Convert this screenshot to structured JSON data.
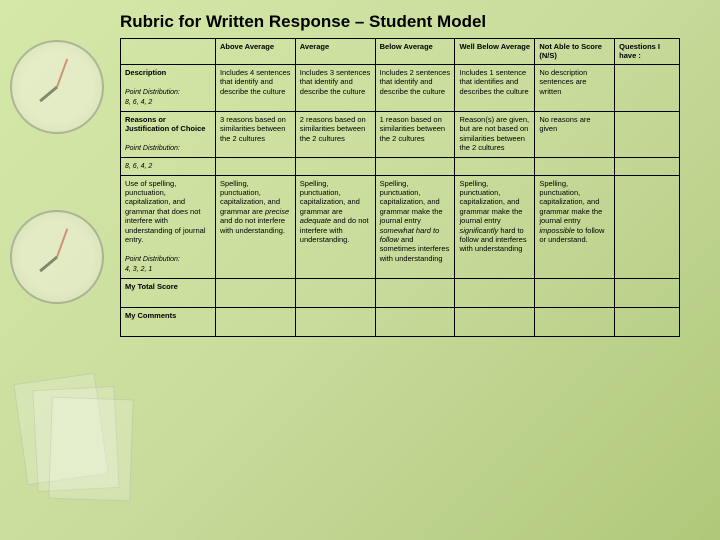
{
  "title": "Rubric for Written Response – Student Model",
  "table": {
    "type": "table",
    "background_color": "#d4e8a8",
    "border_color": "#000000",
    "text_color": "#000000",
    "font_size_pt": 7.5,
    "headers": [
      "",
      "Above Average",
      "Average",
      "Below Average",
      "Well Below Average",
      "Not Able to Score (N/S)",
      "Questions I have :"
    ],
    "rows": [
      {
        "criteria_label": "Description",
        "point_label": "Point Distribution:",
        "points": "8, 6, 4, 2",
        "cells": [
          "Includes 4 sentences that identify and describe the culture",
          "Includes 3 sentences that identify and describe the culture",
          "Includes 2 sentences that identify and describe the culture",
          "Includes 1 sentence that identifies and describes the culture",
          "No description sentences are written",
          ""
        ]
      },
      {
        "criteria_label": "Reasons or Justification of Choice",
        "point_label": "Point Distribution:",
        "points": "8, 6, 4, 2",
        "points_below": true,
        "cells": [
          "3 reasons based on similarities between the 2 cultures",
          "2 reasons based on similarities between the 2 cultures",
          "1 reason based on similarities between the 2 cultures",
          "Reason(s) are given, but are not based on similarities between the 2 cultures",
          "No reasons are given",
          ""
        ]
      },
      {
        "criteria_label": "Use of spelling, punctuation, capitalization, and grammar that does not interfere with understanding of journal entry.",
        "point_label": "Point Distribution:",
        "points": "4, 3, 2, 1",
        "cells": [
          "Spelling, punctuation, capitalization, and grammar are precise and do not interfere with understanding.",
          "Spelling, punctuation, capitalization, and grammar are adequate and do not interfere with understanding.",
          "Spelling, punctuation, capitalization, and grammar make the journal entry somewhat hard to follow and sometimes interferes with understanding",
          "Spelling, punctuation, capitalization, and grammar make the journal entry significantly hard to follow and interferes with understanding",
          "Spelling, punctuation, capitalization, and grammar make the journal entry impossible to follow or understand.",
          ""
        ]
      }
    ],
    "footer_rows": [
      "My Total Score",
      "My Comments"
    ],
    "italic_words": [
      "precise",
      "adequate",
      "somewhat hard to follow",
      "significantly",
      "impossible"
    ]
  }
}
